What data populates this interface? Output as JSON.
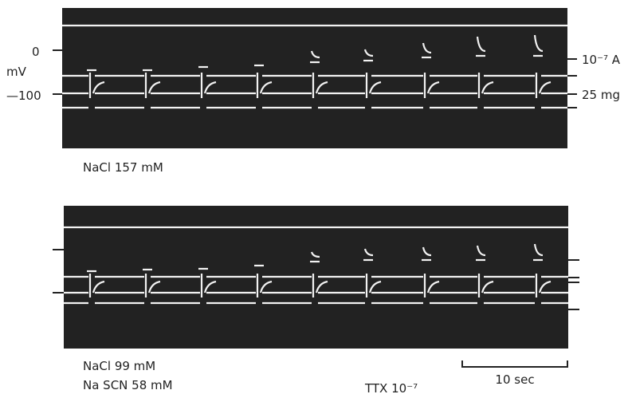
{
  "panel_top": {
    "y_axis": {
      "zero": "0",
      "unit": "mV",
      "minus100": "—100"
    },
    "right_labels": {
      "current": "10⁻⁷ A",
      "force": "25 mg"
    },
    "caption": "NaCl 157 mM"
  },
  "panel_bottom": {
    "caption_lines": [
      "NaCl 99 mM",
      "Na SCN 58 mM"
    ],
    "drug": "TTX 10⁻⁷",
    "scale_bar": "10 sec"
  }
}
